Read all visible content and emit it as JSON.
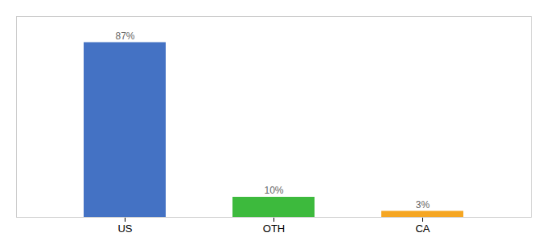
{
  "chart_data": {
    "type": "bar",
    "categories": [
      "US",
      "OTH",
      "CA"
    ],
    "values": [
      87,
      10,
      3
    ],
    "value_labels": [
      "87%",
      "10%",
      "3%"
    ],
    "colors": [
      "#4472c4",
      "#3dba3d",
      "#f5a623"
    ],
    "ylim": [
      0,
      100
    ],
    "data_labels": true,
    "tick_labels": "x"
  }
}
